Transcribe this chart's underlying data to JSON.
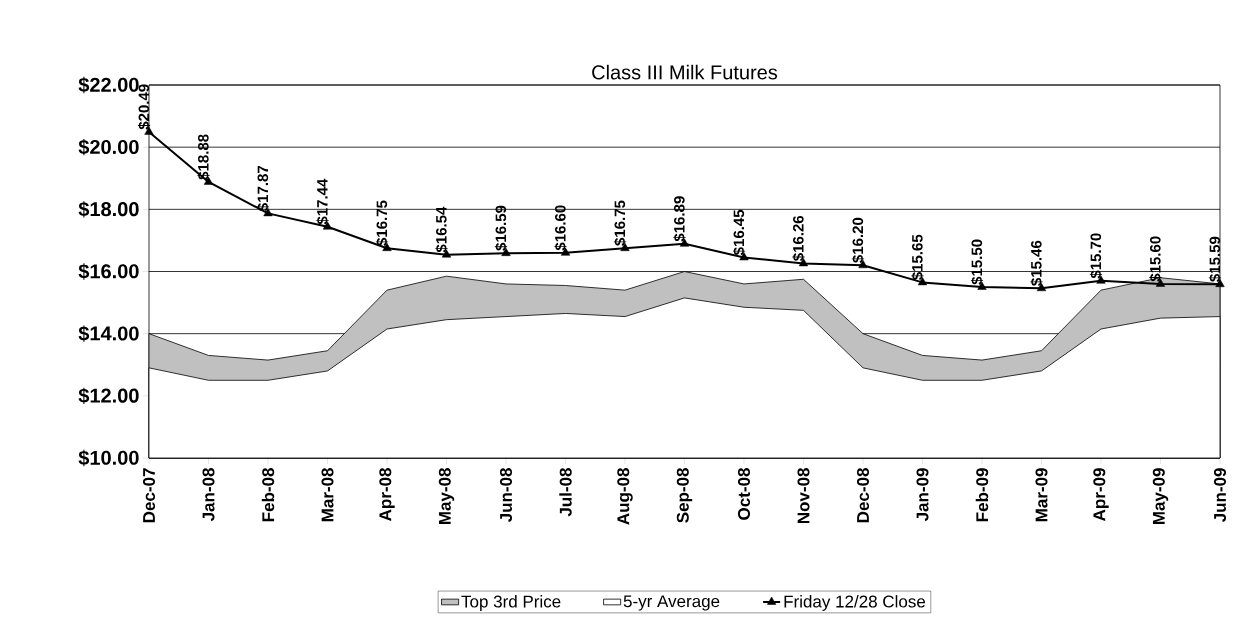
{
  "chart_data": {
    "type": "line",
    "title": "Class III Milk Futures",
    "categories": [
      "Dec-07",
      "Jan-08",
      "Feb-08",
      "Mar-08",
      "Apr-08",
      "May-08",
      "Jun-08",
      "Jul-08",
      "Aug-08",
      "Sep-08",
      "Oct-08",
      "Nov-08",
      "Dec-08",
      "Jan-09",
      "Feb-09",
      "Mar-09",
      "Apr-09",
      "May-09",
      "Jun-09"
    ],
    "series": [
      {
        "name": "Top 3rd Price",
        "type": "area",
        "color": "#c0c0c0",
        "values": [
          14.0,
          13.3,
          13.15,
          13.45,
          15.4,
          15.85,
          15.6,
          15.55,
          15.4,
          16.0,
          15.6,
          15.75,
          14.0,
          13.3,
          13.15,
          13.45,
          15.4,
          15.8,
          15.6
        ]
      },
      {
        "name": "5-yr Average",
        "type": "area",
        "color": "#ffffff",
        "values": [
          12.9,
          12.5,
          12.5,
          12.8,
          14.15,
          14.45,
          14.55,
          14.65,
          14.55,
          15.15,
          14.85,
          14.75,
          12.9,
          12.5,
          12.5,
          12.8,
          14.15,
          14.5,
          14.55
        ]
      },
      {
        "name": "Friday 12/28 Close",
        "color": "#000000",
        "marker": "triangle",
        "values": [
          20.49,
          18.88,
          17.87,
          17.44,
          16.75,
          16.54,
          16.59,
          16.6,
          16.75,
          16.89,
          16.45,
          16.26,
          16.2,
          15.65,
          15.5,
          15.46,
          15.7,
          15.6,
          15.59
        ],
        "value_labels": [
          "$20.49",
          "$18.88",
          "$17.87",
          "$17.44",
          "$16.75",
          "$16.54",
          "$16.59",
          "$16.60",
          "$16.75",
          "$16.89",
          "$16.45",
          "$16.26",
          "$16.20",
          "$15.65",
          "$15.50",
          "$15.46",
          "$15.70",
          "$15.60",
          "$15.59"
        ]
      }
    ],
    "ylim": [
      10,
      22
    ],
    "yticks": [
      {
        "value": 10,
        "label": "$10.00"
      },
      {
        "value": 12,
        "label": "$12.00"
      },
      {
        "value": 14,
        "label": "$14.00"
      },
      {
        "value": 16,
        "label": "$16.00"
      },
      {
        "value": 18,
        "label": "$18.00"
      },
      {
        "value": 20,
        "label": "$20.00"
      },
      {
        "value": 22,
        "label": "$22.00"
      }
    ],
    "grid": "y",
    "legend": "bottom"
  }
}
